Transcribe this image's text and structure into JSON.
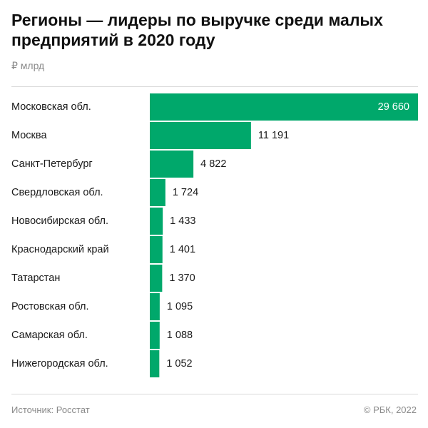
{
  "header": {
    "title": "Регионы — лидеры по выручке среди малых предприятий в 2020 году",
    "unit": "₽ млрд"
  },
  "footer": {
    "source": "Источник: Росстат",
    "copyright": "© РБК, 2022"
  },
  "colors": {
    "bar": "#00a86b",
    "text": "#1a1a1a",
    "muted": "#8a8a8a"
  },
  "chart_data": {
    "type": "bar",
    "orientation": "horizontal",
    "title": "Регионы — лидеры по выручке среди малых предприятий в 2020 году",
    "unit": "₽ млрд",
    "categories": [
      "Московская обл.",
      "Москва",
      "Санкт-Петербург",
      "Свердловская обл.",
      "Новосибирская обл.",
      "Краснодарский край",
      "Татарстан",
      "Ростовская обл.",
      "Самарская обл.",
      "Нижегородская обл."
    ],
    "values": [
      29660,
      11191,
      4822,
      1724,
      1433,
      1401,
      1370,
      1095,
      1088,
      1052
    ],
    "value_labels": [
      "29 660",
      "11 191",
      "4 822",
      "1 724",
      "1 433",
      "1 401",
      "1 370",
      "1 095",
      "1 088",
      "1 052"
    ],
    "xlim": [
      0,
      29660
    ],
    "grid": false,
    "legend": "none"
  }
}
